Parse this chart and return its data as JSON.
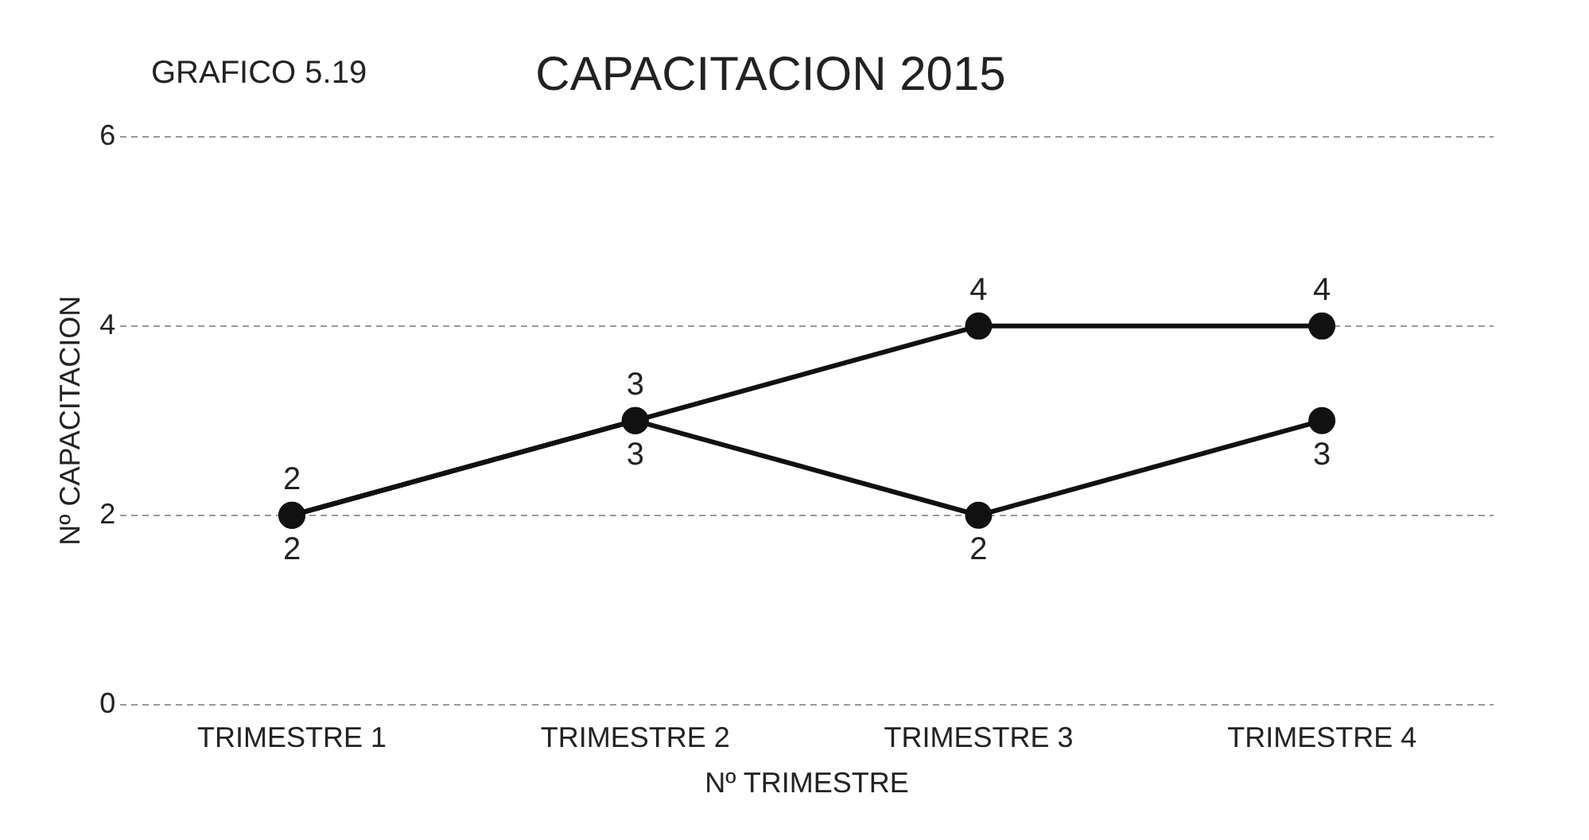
{
  "chart_data": {
    "type": "line",
    "title": "CAPACITACION 2015",
    "annotations": [
      "GRAFICO 5.19"
    ],
    "xlabel": "Nº TRIMESTRE",
    "ylabel": "Nº CAPACITACION",
    "categories": [
      "TRIMESTRE 1",
      "TRIMESTRE 2",
      "TRIMESTRE 3",
      "TRIMESTRE 4"
    ],
    "series": [
      {
        "color": "#111111",
        "values": [
          2,
          3,
          4,
          4
        ]
      },
      {
        "color": "#111111",
        "values": [
          2,
          3,
          2,
          3
        ]
      }
    ],
    "ylim": [
      0,
      6
    ],
    "yticks": [
      0,
      2,
      4,
      6
    ],
    "grid": "y",
    "marker": "circle",
    "line_style": "solid",
    "data_labels": true,
    "legend": false
  }
}
